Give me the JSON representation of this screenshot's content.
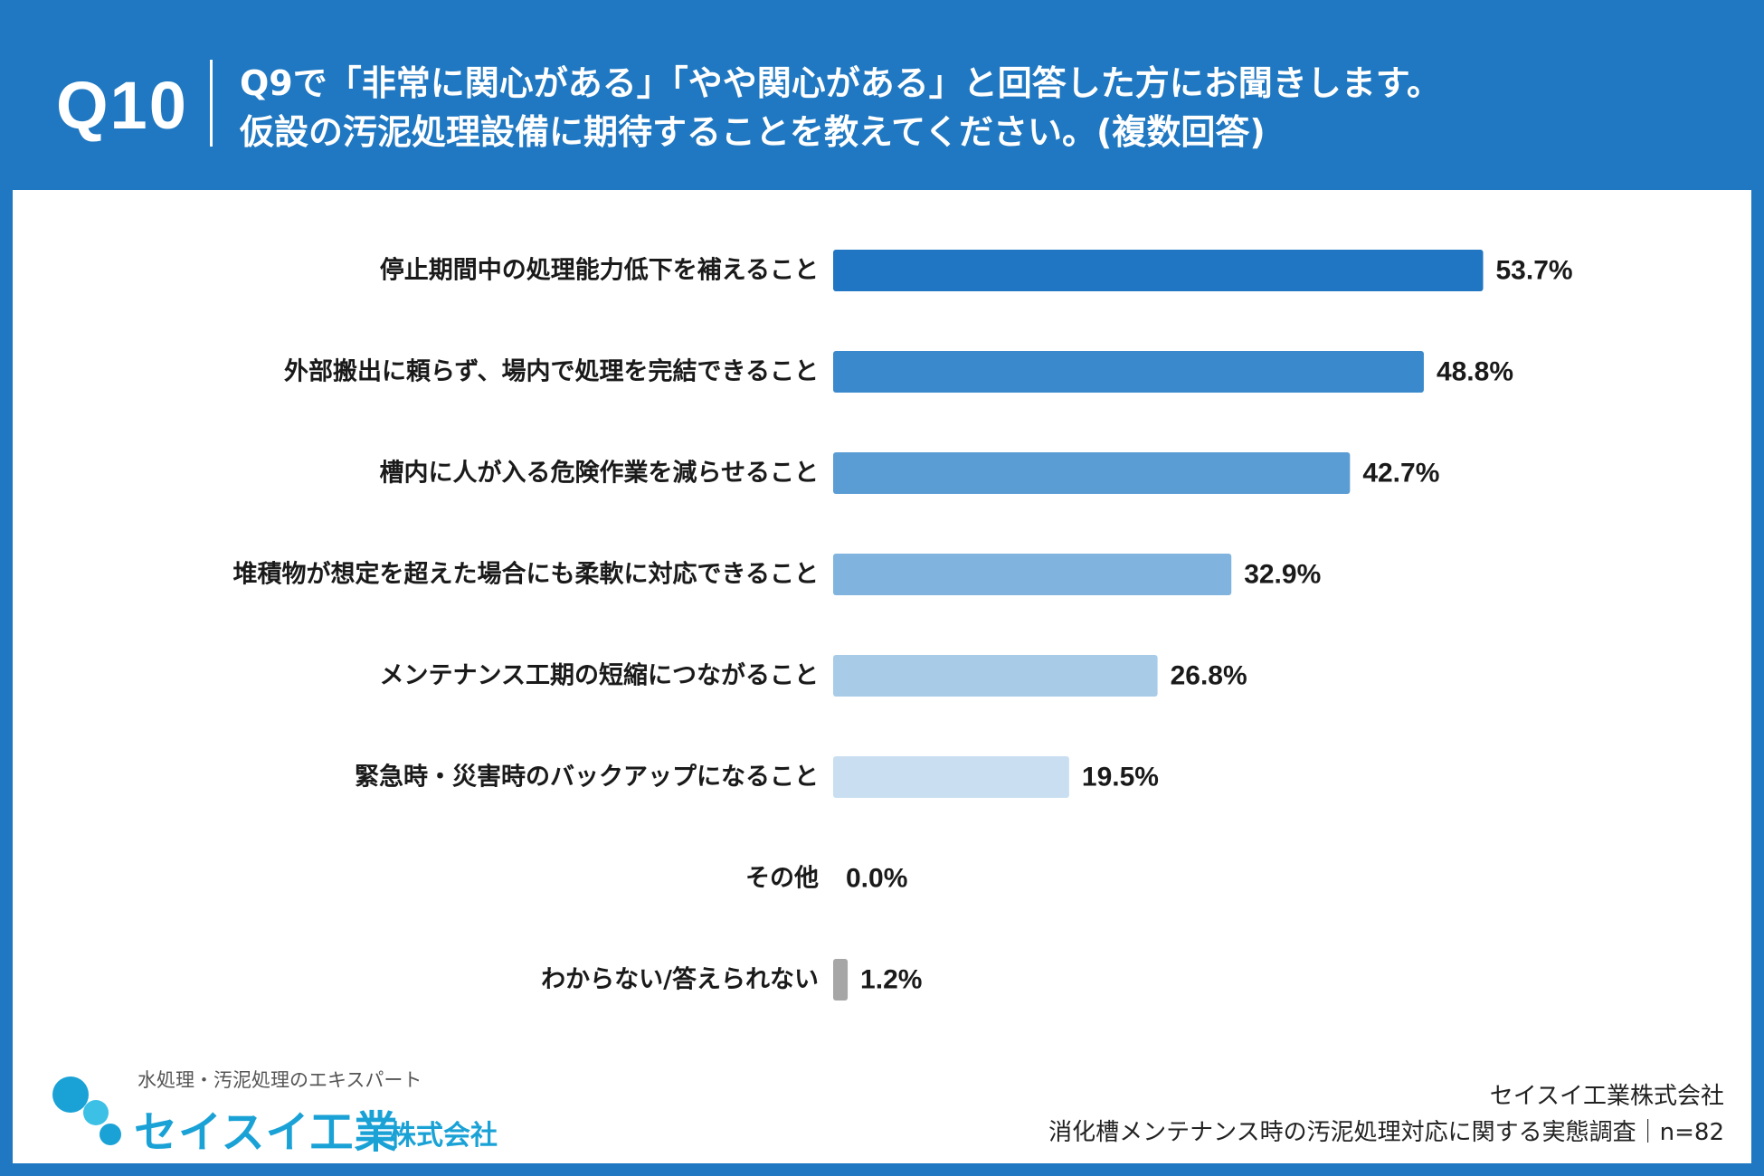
{
  "header": {
    "q_number": "Q10",
    "question_line1": "Q9で「非常に関心がある」「やや関心がある」と回答した方にお聞きします。",
    "question_line2": "仮設の汚泥処理設備に期待することを教えてください。(複数回答)"
  },
  "chart_data": {
    "type": "bar",
    "orientation": "horizontal",
    "title": "仮設の汚泥処理設備に期待することを教えてください。(複数回答)",
    "xlabel": "",
    "ylabel": "",
    "xlim": [
      0,
      100
    ],
    "categories": [
      "停止期間中の処理能力低下を補えること",
      "外部搬出に頼らず、場内で処理を完結できること",
      "槽内に人が入る危険作業を減らせること",
      "堆積物が想定を超えた場合にも柔軟に対応できること",
      "メンテナンス工期の短縮につながること",
      "緊急時・災害時のバックアップになること",
      "その他",
      "わからない/答えられない"
    ],
    "values": [
      53.7,
      48.8,
      42.7,
      32.9,
      26.8,
      19.5,
      0.0,
      1.2
    ],
    "value_labels": [
      "53.7%",
      "48.8%",
      "42.7%",
      "32.9%",
      "26.8%",
      "19.5%",
      "0.0%",
      "1.2%"
    ],
    "colors": [
      "#2076c2",
      "#3a89cc",
      "#5a9dd4",
      "#80b4de",
      "#a8cbe8",
      "#c9dff1",
      "#c9dff1",
      "#a6a6a6"
    ]
  },
  "footer": {
    "logo_tagline": "水処理・汚泥処理のエキスパート",
    "logo_name": "セイスイ工業",
    "logo_suffix": "株式会社",
    "company": "セイスイ工業株式会社",
    "survey_title": "消化槽メンテナンス時の汚泥処理対応に関する実態調査｜n=82",
    "logo_colors": [
      "#1aa2d6",
      "#3cc0e6"
    ]
  }
}
